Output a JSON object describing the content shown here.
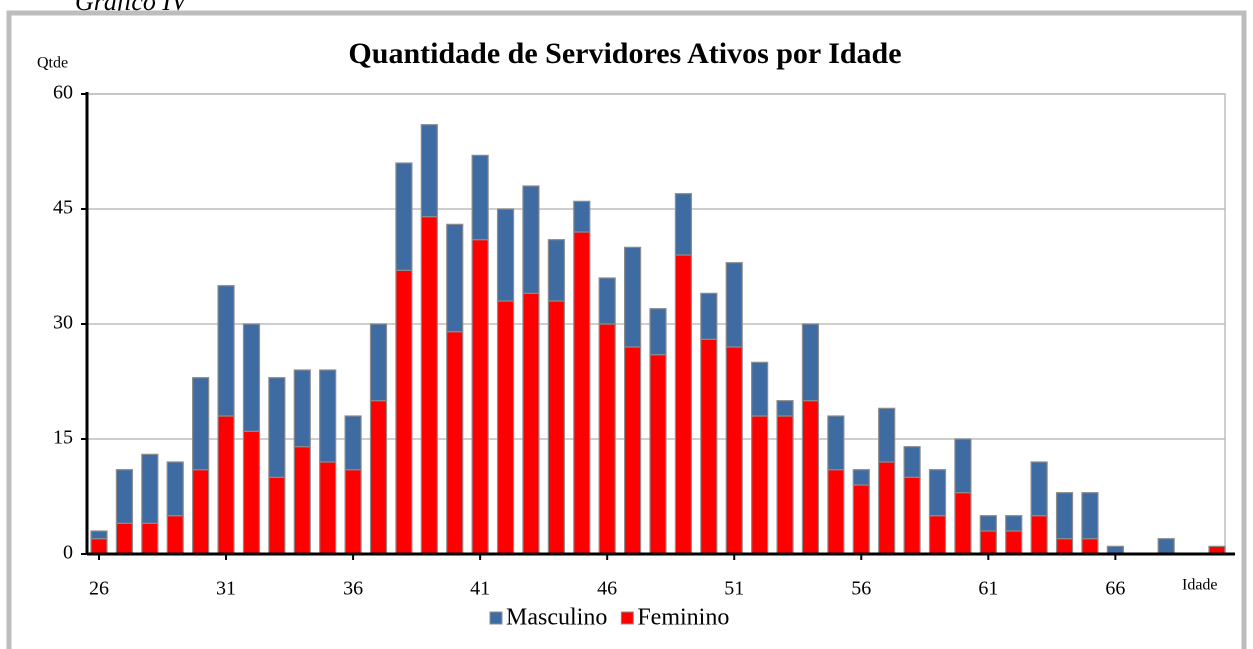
{
  "caption": "Gráfico IV",
  "chart_data": {
    "type": "stacked_bar",
    "title": "Quantidade de Servidores Ativos por Idade",
    "y_label": "Qtde",
    "x_label": "Idade",
    "categories": [
      "26",
      null,
      null,
      null,
      null,
      "31",
      null,
      null,
      null,
      null,
      "36",
      null,
      null,
      null,
      null,
      "41",
      null,
      null,
      null,
      null,
      "46",
      null,
      null,
      null,
      null,
      "51",
      null,
      null,
      null,
      null,
      "56",
      null,
      null,
      null,
      null,
      "61",
      null,
      null,
      null,
      null,
      "66",
      null,
      null,
      null,
      null
    ],
    "series": [
      {
        "name": "Masculino",
        "color": "#3f6ba3",
        "values": [
          1,
          7,
          9,
          7,
          12,
          17,
          14,
          13,
          10,
          12,
          7,
          10,
          14,
          12,
          14,
          11,
          12,
          14,
          8,
          4,
          6,
          13,
          6,
          8,
          6,
          11,
          7,
          2,
          10,
          7,
          2,
          7,
          4,
          6,
          7,
          2,
          2,
          7,
          6,
          6,
          1,
          0,
          2,
          0,
          0
        ]
      },
      {
        "name": "Feminino",
        "color": "#ff0000",
        "values": [
          2,
          4,
          4,
          5,
          11,
          18,
          16,
          10,
          14,
          12,
          11,
          20,
          37,
          44,
          29,
          41,
          33,
          34,
          33,
          42,
          30,
          27,
          26,
          39,
          28,
          27,
          18,
          18,
          20,
          11,
          9,
          12,
          10,
          5,
          8,
          3,
          3,
          5,
          2,
          2,
          0,
          0,
          0,
          0,
          1
        ]
      }
    ],
    "ylim": [
      0,
      60
    ],
    "yticks": [
      0,
      15,
      30,
      45,
      60
    ],
    "grid": true,
    "legend": "bottom"
  }
}
